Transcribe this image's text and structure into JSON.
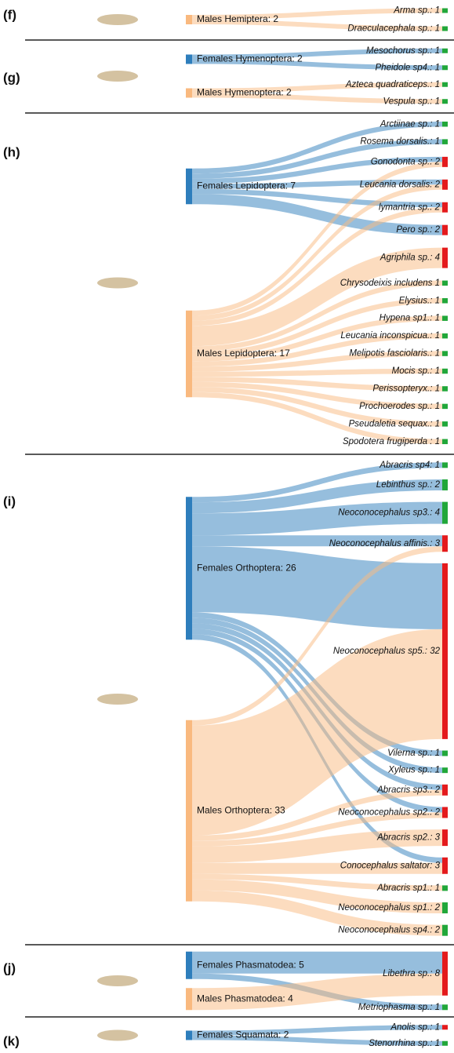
{
  "chart_data": [
    {
      "type": "sankey",
      "label": "(f)",
      "sources": [
        {
          "name": "Males Hemiptera: 2",
          "value": 2,
          "color": "#f9b97f"
        }
      ],
      "targets": [
        {
          "name": "Arma sp.: 1",
          "value": 1,
          "color": "#21a73a"
        },
        {
          "name": "Draeculacephala sp.: 1",
          "value": 1,
          "color": "#21a73a"
        }
      ],
      "links": [
        {
          "source": 0,
          "target": 0,
          "value": 1
        },
        {
          "source": 0,
          "target": 1,
          "value": 1
        }
      ]
    },
    {
      "type": "sankey",
      "label": "(g)",
      "sources": [
        {
          "name": "Females Hymenoptera: 2",
          "value": 2,
          "color": "#2e7ebc"
        },
        {
          "name": "Males Hymenoptera: 2",
          "value": 2,
          "color": "#f9b97f"
        }
      ],
      "targets": [
        {
          "name": "Mesochorus sp.: 1",
          "value": 1,
          "color": "#21a73a"
        },
        {
          "name": "Pheidole sp4.: 1",
          "value": 1,
          "color": "#21a73a"
        },
        {
          "name": "Azteca quadraticeps.: 1",
          "value": 1,
          "color": "#21a73a"
        },
        {
          "name": "Vespula sp.: 1",
          "value": 1,
          "color": "#21a73a"
        }
      ],
      "links": [
        {
          "source": 0,
          "target": 0,
          "value": 1
        },
        {
          "source": 0,
          "target": 1,
          "value": 1
        },
        {
          "source": 1,
          "target": 2,
          "value": 1
        },
        {
          "source": 1,
          "target": 3,
          "value": 1
        }
      ]
    },
    {
      "type": "sankey",
      "label": "(h)",
      "sources": [
        {
          "name": "Females Lepidoptera: 7",
          "value": 7,
          "color": "#2e7ebc"
        },
        {
          "name": "Males Lepidoptera: 17",
          "value": 17,
          "color": "#f9b97f"
        }
      ],
      "targets": [
        {
          "name": "Arctiinae sp.: 1",
          "value": 1,
          "color": "#21a73a"
        },
        {
          "name": "Rosema dorsalis.: 1",
          "value": 1,
          "color": "#21a73a"
        },
        {
          "name": "Gonodonta sp.: 2",
          "value": 2,
          "color": "#e41a1c"
        },
        {
          "name": "Leucania dorsalis: 2",
          "value": 2,
          "color": "#e41a1c"
        },
        {
          "name": "lymantria sp.: 2",
          "value": 2,
          "color": "#e41a1c"
        },
        {
          "name": "Pero sp.: 2",
          "value": 2,
          "color": "#e41a1c"
        },
        {
          "name": "Agriphila sp.: 4",
          "value": 4,
          "color": "#e41a1c"
        },
        {
          "name": "Chrysodeixis includens 1",
          "value": 1,
          "color": "#21a73a"
        },
        {
          "name": "Elysius.: 1",
          "value": 1,
          "color": "#21a73a"
        },
        {
          "name": "Hypena sp1.: 1",
          "value": 1,
          "color": "#21a73a"
        },
        {
          "name": "Leucania inconspicua.: 1",
          "value": 1,
          "color": "#21a73a"
        },
        {
          "name": "Melipotis fasciolaris.: 1",
          "value": 1,
          "color": "#21a73a"
        },
        {
          "name": "Mocis sp.: 1",
          "value": 1,
          "color": "#21a73a"
        },
        {
          "name": "Perissopteryx.: 1",
          "value": 1,
          "color": "#21a73a"
        },
        {
          "name": "Prochoerodes sp.: 1",
          "value": 1,
          "color": "#21a73a"
        },
        {
          "name": "Pseudaletia sequax.: 1",
          "value": 1,
          "color": "#21a73a"
        },
        {
          "name": "Spodotera frugiperda : 1",
          "value": 1,
          "color": "#21a73a"
        }
      ],
      "links": [
        {
          "source": 0,
          "target": 0,
          "value": 1
        },
        {
          "source": 0,
          "target": 1,
          "value": 1
        },
        {
          "source": 0,
          "target": 2,
          "value": 1
        },
        {
          "source": 0,
          "target": 3,
          "value": 1
        },
        {
          "source": 0,
          "target": 4,
          "value": 1
        },
        {
          "source": 0,
          "target": 5,
          "value": 2
        },
        {
          "source": 1,
          "target": 2,
          "value": 1
        },
        {
          "source": 1,
          "target": 3,
          "value": 1
        },
        {
          "source": 1,
          "target": 4,
          "value": 1
        },
        {
          "source": 1,
          "target": 6,
          "value": 4
        },
        {
          "source": 1,
          "target": 7,
          "value": 1
        },
        {
          "source": 1,
          "target": 8,
          "value": 1
        },
        {
          "source": 1,
          "target": 9,
          "value": 1
        },
        {
          "source": 1,
          "target": 10,
          "value": 1
        },
        {
          "source": 1,
          "target": 11,
          "value": 1
        },
        {
          "source": 1,
          "target": 12,
          "value": 1
        },
        {
          "source": 1,
          "target": 13,
          "value": 1
        },
        {
          "source": 1,
          "target": 14,
          "value": 1
        },
        {
          "source": 1,
          "target": 15,
          "value": 1
        },
        {
          "source": 1,
          "target": 16,
          "value": 1
        }
      ]
    },
    {
      "type": "sankey",
      "label": "(i)",
      "sources": [
        {
          "name": "Females Orthoptera: 26",
          "value": 26,
          "color": "#2e7ebc"
        },
        {
          "name": "Males Orthoptera: 33",
          "value": 33,
          "color": "#f9b97f"
        }
      ],
      "targets": [
        {
          "name": "Abracris sp4: 1",
          "value": 1,
          "color": "#21a73a"
        },
        {
          "name": "Lebinthus sp.: 2",
          "value": 2,
          "color": "#21a73a"
        },
        {
          "name": "Neoconocephalus sp3.: 4",
          "value": 4,
          "color": "#21a73a"
        },
        {
          "name": "Neoconocephalus affinis.: 3",
          "value": 3,
          "color": "#e41a1c"
        },
        {
          "name": "Neoconocephalus sp5.: 32",
          "value": 32,
          "color": "#e41a1c"
        },
        {
          "name": "Vilerna sp.: 1",
          "value": 1,
          "color": "#21a73a"
        },
        {
          "name": "Xyleus sp.: 1",
          "value": 1,
          "color": "#21a73a"
        },
        {
          "name": "Abracris sp3.: 2",
          "value": 2,
          "color": "#e41a1c"
        },
        {
          "name": "Neoconocephalus sp2.: 2",
          "value": 2,
          "color": "#e41a1c"
        },
        {
          "name": "Abracris sp2.: 3",
          "value": 3,
          "color": "#e41a1c"
        },
        {
          "name": "Conocephalus saltator: 3",
          "value": 3,
          "color": "#e41a1c"
        },
        {
          "name": "Abracris sp1.: 1",
          "value": 1,
          "color": "#21a73a"
        },
        {
          "name": "Neoconocephalus sp1.: 2",
          "value": 2,
          "color": "#21a73a"
        },
        {
          "name": "Neoconocephalus sp4.: 2",
          "value": 2,
          "color": "#21a73a"
        }
      ],
      "links": [
        {
          "source": 0,
          "target": 0,
          "value": 1
        },
        {
          "source": 0,
          "target": 1,
          "value": 2
        },
        {
          "source": 0,
          "target": 2,
          "value": 4
        },
        {
          "source": 0,
          "target": 3,
          "value": 2
        },
        {
          "source": 0,
          "target": 4,
          "value": 12
        },
        {
          "source": 0,
          "target": 5,
          "value": 1
        },
        {
          "source": 0,
          "target": 6,
          "value": 1
        },
        {
          "source": 0,
          "target": 7,
          "value": 1
        },
        {
          "source": 0,
          "target": 8,
          "value": 1
        },
        {
          "source": 0,
          "target": 10,
          "value": 1
        },
        {
          "source": 1,
          "target": 3,
          "value": 1
        },
        {
          "source": 1,
          "target": 4,
          "value": 20
        },
        {
          "source": 1,
          "target": 7,
          "value": 1
        },
        {
          "source": 1,
          "target": 8,
          "value": 1
        },
        {
          "source": 1,
          "target": 9,
          "value": 3
        },
        {
          "source": 1,
          "target": 10,
          "value": 2
        },
        {
          "source": 1,
          "target": 11,
          "value": 1
        },
        {
          "source": 1,
          "target": 12,
          "value": 2
        },
        {
          "source": 1,
          "target": 13,
          "value": 2
        }
      ]
    },
    {
      "type": "sankey",
      "label": "(j)",
      "sources": [
        {
          "name": "Females Phasmatodea: 5",
          "value": 5,
          "color": "#2e7ebc"
        },
        {
          "name": "Males Phasmatodea: 4",
          "value": 4,
          "color": "#f9b97f"
        }
      ],
      "targets": [
        {
          "name": "Libethra sp.: 8",
          "value": 8,
          "color": "#e41a1c"
        },
        {
          "name": "Metriophasma sp.: 1",
          "value": 1,
          "color": "#21a73a"
        }
      ],
      "links": [
        {
          "source": 0,
          "target": 0,
          "value": 4
        },
        {
          "source": 0,
          "target": 1,
          "value": 1
        },
        {
          "source": 1,
          "target": 0,
          "value": 4
        }
      ]
    },
    {
      "type": "sankey",
      "label": "(k)",
      "sources": [
        {
          "name": "Females Squamata: 2",
          "value": 2,
          "color": "#2e7ebc"
        }
      ],
      "targets": [
        {
          "name": "Anolis sp.: 1",
          "value": 1,
          "color": "#e41a1c"
        },
        {
          "name": "Stenorrhina sp.: 1",
          "value": 1,
          "color": "#21a73a"
        }
      ],
      "links": [
        {
          "source": 0,
          "target": 0,
          "value": 1
        },
        {
          "source": 0,
          "target": 1,
          "value": 1
        }
      ]
    }
  ]
}
